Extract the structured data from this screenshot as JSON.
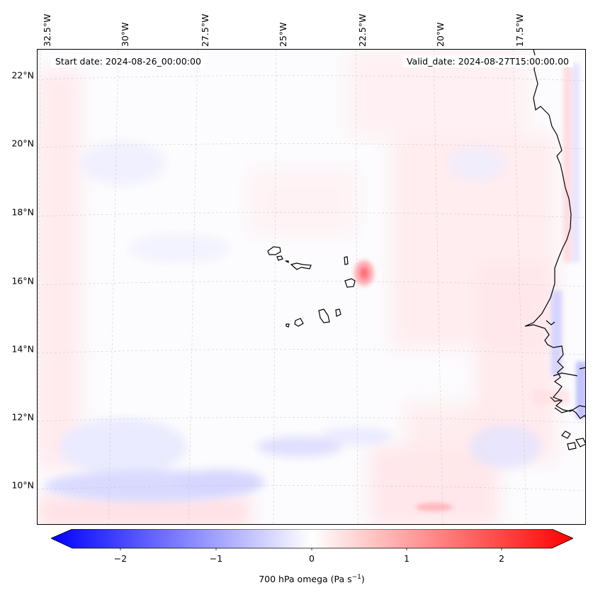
{
  "header": {
    "start_date": "Start date: 2024-08-26_00:00:00",
    "valid_date": "Valid_date: 2024-08-27T15:00:00.00"
  },
  "axes": {
    "lon_labels": [
      "32.5°W",
      "30°W",
      "27.5°W",
      "25°W",
      "22.5°W",
      "20°W",
      "17.5°W"
    ],
    "lat_labels": [
      "22°N",
      "20°N",
      "18°N",
      "16°N",
      "14°N",
      "12°N",
      "10°N"
    ]
  },
  "colorbar": {
    "title_prefix": "700 hPa omega (Pa s",
    "title_exp": "−1",
    "title_suffix": ")",
    "ticks": [
      "−2",
      "−1",
      "0",
      "1",
      "2"
    ],
    "min": -2.6,
    "max": 2.6,
    "colors": {
      "negative": "#0000ff",
      "zero": "#ffffff",
      "positive": "#ff0000"
    }
  },
  "map": {
    "variable": "700 hPa omega",
    "features": [
      "coastline",
      "gridlines",
      "cape-verde-islands",
      "west-africa-coast"
    ]
  }
}
